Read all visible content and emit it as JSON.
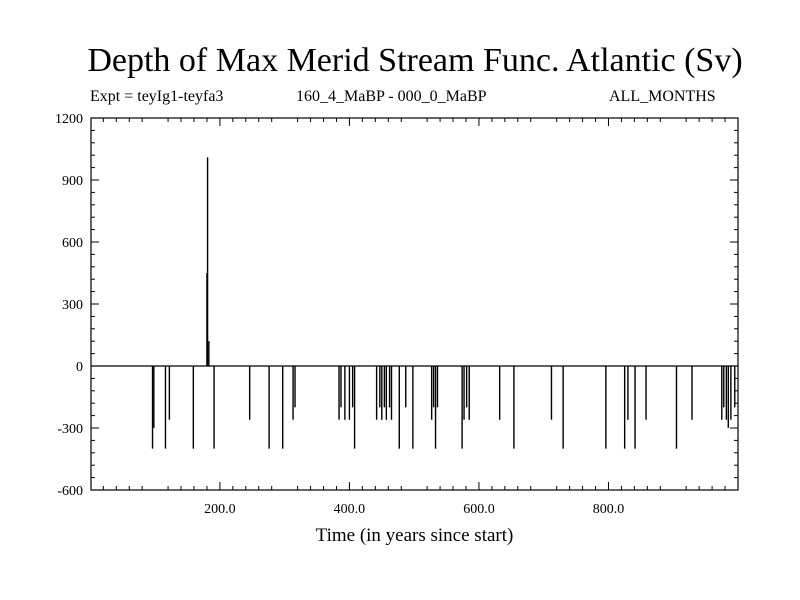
{
  "header": {
    "title": "Depth of Max Merid Stream Func. Atlantic (Sv)",
    "expt": "Expt = teyIg1-teyfa3",
    "period": "160_4_MaBP - 000_0_MaBP",
    "months": "ALL_MONTHS"
  },
  "chart_data": {
    "type": "line",
    "title": "Depth of Max Merid Stream Func. Atlantic (Sv)",
    "xlabel": "Time (in years since start)",
    "ylabel": "",
    "xlim": [
      1,
      1000
    ],
    "ylim": [
      -600,
      1200
    ],
    "x_ticks": [
      200,
      400,
      600,
      800
    ],
    "x_tick_labels": [
      "200.0",
      "400.0",
      "600.0",
      "800.0"
    ],
    "y_ticks": [
      -600,
      -300,
      0,
      300,
      600,
      900,
      1200
    ],
    "y_tick_labels": [
      "-600",
      "-300",
      "0",
      "300",
      "600",
      "900",
      "1200"
    ],
    "baseline": 0,
    "series": [
      {
        "name": "Depth of Max Merid Stream Func. Atlantic",
        "spikes": [
          {
            "x": 96,
            "y": -400
          },
          {
            "x": 98,
            "y": -300
          },
          {
            "x": 116,
            "y": -400
          },
          {
            "x": 122,
            "y": -260
          },
          {
            "x": 159,
            "y": -400
          },
          {
            "x": 180,
            "y": 450
          },
          {
            "x": 181,
            "y": 1010
          },
          {
            "x": 183,
            "y": 120
          },
          {
            "x": 191,
            "y": -400
          },
          {
            "x": 246,
            "y": -260
          },
          {
            "x": 276,
            "y": -400
          },
          {
            "x": 297,
            "y": -400
          },
          {
            "x": 313,
            "y": -260
          },
          {
            "x": 316,
            "y": -200
          },
          {
            "x": 384,
            "y": -260
          },
          {
            "x": 387,
            "y": -200
          },
          {
            "x": 393,
            "y": -260
          },
          {
            "x": 400,
            "y": -260
          },
          {
            "x": 405,
            "y": -200
          },
          {
            "x": 408,
            "y": -400
          },
          {
            "x": 442,
            "y": -260
          },
          {
            "x": 447,
            "y": -200
          },
          {
            "x": 450,
            "y": -260
          },
          {
            "x": 454,
            "y": -200
          },
          {
            "x": 457,
            "y": -260
          },
          {
            "x": 462,
            "y": -200
          },
          {
            "x": 465,
            "y": -260
          },
          {
            "x": 477,
            "y": -400
          },
          {
            "x": 487,
            "y": -200
          },
          {
            "x": 498,
            "y": -400
          },
          {
            "x": 527,
            "y": -260
          },
          {
            "x": 530,
            "y": -200
          },
          {
            "x": 533,
            "y": -400
          },
          {
            "x": 536,
            "y": -200
          },
          {
            "x": 574,
            "y": -400
          },
          {
            "x": 577,
            "y": -260
          },
          {
            "x": 581,
            "y": -200
          },
          {
            "x": 585,
            "y": -260
          },
          {
            "x": 632,
            "y": -260
          },
          {
            "x": 654,
            "y": -400
          },
          {
            "x": 712,
            "y": -260
          },
          {
            "x": 730,
            "y": -400
          },
          {
            "x": 796,
            "y": -400
          },
          {
            "x": 825,
            "y": -400
          },
          {
            "x": 830,
            "y": -260
          },
          {
            "x": 841,
            "y": -400
          },
          {
            "x": 858,
            "y": -260
          },
          {
            "x": 905,
            "y": -400
          },
          {
            "x": 929,
            "y": -260
          },
          {
            "x": 975,
            "y": -260
          },
          {
            "x": 978,
            "y": -200
          },
          {
            "x": 982,
            "y": -260
          },
          {
            "x": 985,
            "y": -300
          },
          {
            "x": 989,
            "y": -260
          },
          {
            "x": 995,
            "y": -200
          }
        ]
      }
    ]
  }
}
